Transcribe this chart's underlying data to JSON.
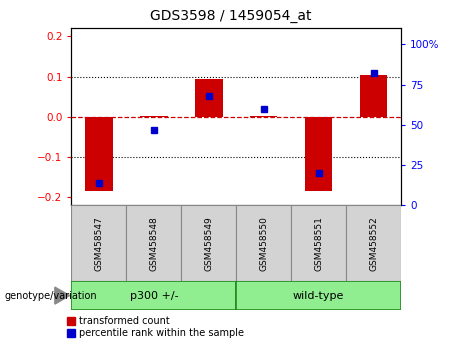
{
  "title": "GDS3598 / 1459054_at",
  "samples": [
    "GSM458547",
    "GSM458548",
    "GSM458549",
    "GSM458550",
    "GSM458551",
    "GSM458552"
  ],
  "red_values": [
    -0.185,
    0.002,
    0.095,
    0.003,
    -0.185,
    0.105
  ],
  "blue_values": [
    14,
    47,
    68,
    60,
    20,
    82
  ],
  "group_label": "genotype/variation",
  "group_boxes": [
    {
      "xstart": -0.5,
      "xend": 2.5,
      "label": "p300 +/-",
      "color": "#90EE90",
      "edgecolor": "#228B22"
    },
    {
      "xstart": 2.5,
      "xend": 5.5,
      "label": "wild-type",
      "color": "#90EE90",
      "edgecolor": "#228B22"
    }
  ],
  "ylim_left": [
    -0.22,
    0.22
  ],
  "ylim_right": [
    0,
    110
  ],
  "yticks_left": [
    -0.2,
    -0.1,
    0.0,
    0.1,
    0.2
  ],
  "yticks_right": [
    0,
    25,
    50,
    75,
    100
  ],
  "bar_color": "#CC0000",
  "dot_color": "#0000CC",
  "hline_color": "#CC0000",
  "legend_labels": [
    "transformed count",
    "percentile rank within the sample"
  ],
  "bar_width": 0.5,
  "box_facecolor": "#d3d3d3",
  "box_edgecolor": "#888888"
}
